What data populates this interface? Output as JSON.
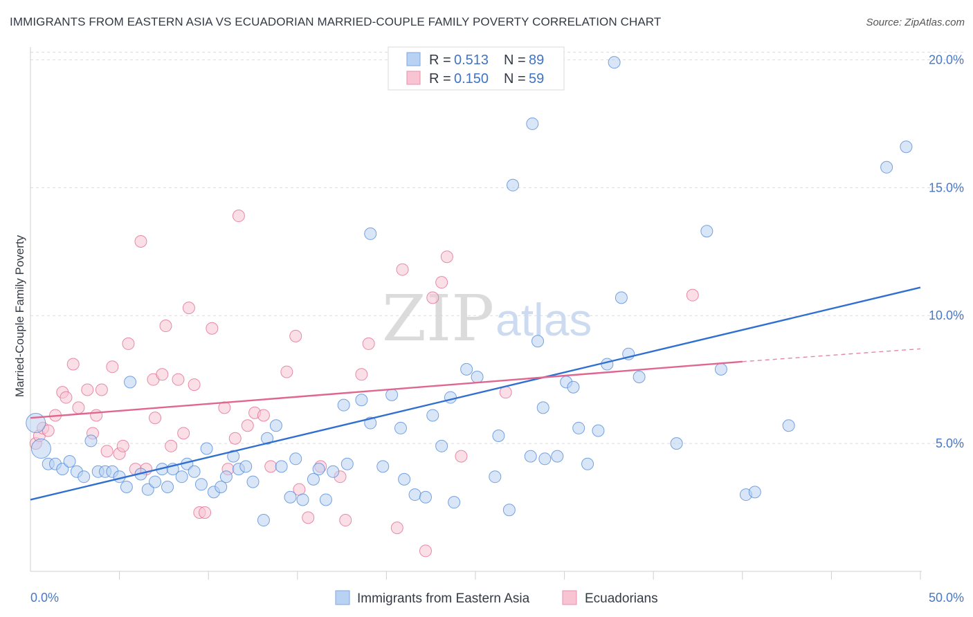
{
  "title": "IMMIGRANTS FROM EASTERN ASIA VS ECUADORIAN MARRIED-COUPLE FAMILY POVERTY CORRELATION CHART",
  "source": "Source: ZipAtlas.com",
  "watermark": {
    "zip": "ZIP",
    "atlas": "atlas"
  },
  "colors": {
    "blue": "#4a86d8",
    "blue_fill": "#b9d2f3",
    "pink": "#e0668f",
    "pink_fill": "#f8c4d3"
  },
  "legend": {
    "rows": [
      {
        "r_label": "R =",
        "r_value": "0.513",
        "n_label": "N =",
        "n_value": "89"
      },
      {
        "r_label": "R =",
        "r_value": "0.150",
        "n_label": "N =",
        "n_value": "59"
      }
    ]
  },
  "chart_data": {
    "type": "scatter",
    "title": "IMMIGRANTS FROM EASTERN ASIA VS ECUADORIAN MARRIED-COUPLE FAMILY POVERTY CORRELATION CHART",
    "xlabel": "",
    "ylabel": "Married-Couple Family Poverty",
    "xlim": [
      0,
      50
    ],
    "ylim": [
      0,
      20.5
    ],
    "x_tick_labels": [
      "0.0%",
      "50.0%"
    ],
    "y_ticks": [
      5,
      10,
      15,
      20
    ],
    "y_tick_labels": [
      "5.0%",
      "10.0%",
      "15.0%",
      "20.0%"
    ],
    "series": [
      {
        "name": "Immigrants from Eastern Asia",
        "color": "blue",
        "trend": {
          "x0": 0,
          "y0": 2.8,
          "x1": 50,
          "y1": 11.1
        },
        "points": [
          [
            0.3,
            5.8
          ],
          [
            0.6,
            4.8
          ],
          [
            1.0,
            4.2
          ],
          [
            1.4,
            4.2
          ],
          [
            1.8,
            4.0
          ],
          [
            2.2,
            4.3
          ],
          [
            2.6,
            3.9
          ],
          [
            3.0,
            3.7
          ],
          [
            3.4,
            5.1
          ],
          [
            3.8,
            3.9
          ],
          [
            4.2,
            3.9
          ],
          [
            4.6,
            3.9
          ],
          [
            5.0,
            3.7
          ],
          [
            5.4,
            3.3
          ],
          [
            5.6,
            7.4
          ],
          [
            6.2,
            3.8
          ],
          [
            6.6,
            3.2
          ],
          [
            7.0,
            3.5
          ],
          [
            7.4,
            4.0
          ],
          [
            7.7,
            3.3
          ],
          [
            8.0,
            4.0
          ],
          [
            8.5,
            3.7
          ],
          [
            8.8,
            4.2
          ],
          [
            9.2,
            3.9
          ],
          [
            9.6,
            3.4
          ],
          [
            9.9,
            4.8
          ],
          [
            10.3,
            3.1
          ],
          [
            10.7,
            3.3
          ],
          [
            11.0,
            3.7
          ],
          [
            11.4,
            4.5
          ],
          [
            11.7,
            4.0
          ],
          [
            12.1,
            4.1
          ],
          [
            12.5,
            3.5
          ],
          [
            13.1,
            2.0
          ],
          [
            13.3,
            5.2
          ],
          [
            13.8,
            5.7
          ],
          [
            14.1,
            4.1
          ],
          [
            14.6,
            2.9
          ],
          [
            14.9,
            4.4
          ],
          [
            15.3,
            2.8
          ],
          [
            15.9,
            3.6
          ],
          [
            16.2,
            4.0
          ],
          [
            16.6,
            2.8
          ],
          [
            17.0,
            3.9
          ],
          [
            17.6,
            6.5
          ],
          [
            17.8,
            4.2
          ],
          [
            18.6,
            6.7
          ],
          [
            19.1,
            5.8
          ],
          [
            19.1,
            13.2
          ],
          [
            19.8,
            4.1
          ],
          [
            20.3,
            6.9
          ],
          [
            20.8,
            5.6
          ],
          [
            21.0,
            3.6
          ],
          [
            21.6,
            3.0
          ],
          [
            22.2,
            2.9
          ],
          [
            22.6,
            6.1
          ],
          [
            23.1,
            4.9
          ],
          [
            23.6,
            6.8
          ],
          [
            23.8,
            2.7
          ],
          [
            24.5,
            7.9
          ],
          [
            25.1,
            7.6
          ],
          [
            26.1,
            3.7
          ],
          [
            26.3,
            5.3
          ],
          [
            26.9,
            2.4
          ],
          [
            27.1,
            15.1
          ],
          [
            28.1,
            4.5
          ],
          [
            28.2,
            17.5
          ],
          [
            28.5,
            9.0
          ],
          [
            28.8,
            6.4
          ],
          [
            28.9,
            4.4
          ],
          [
            29.6,
            4.5
          ],
          [
            30.1,
            7.4
          ],
          [
            30.5,
            7.2
          ],
          [
            30.8,
            5.6
          ],
          [
            31.3,
            4.2
          ],
          [
            31.9,
            5.5
          ],
          [
            32.4,
            8.1
          ],
          [
            32.8,
            19.9
          ],
          [
            33.2,
            10.7
          ],
          [
            33.6,
            8.5
          ],
          [
            34.2,
            7.6
          ],
          [
            36.3,
            5.0
          ],
          [
            38.0,
            13.3
          ],
          [
            38.8,
            7.9
          ],
          [
            40.2,
            3.0
          ],
          [
            40.7,
            3.1
          ],
          [
            42.6,
            5.7
          ],
          [
            48.1,
            15.8
          ],
          [
            49.2,
            16.6
          ]
        ]
      },
      {
        "name": "Ecuadorians",
        "color": "pink",
        "trend": {
          "x0": 0,
          "y0": 6.0,
          "x1": 40,
          "y1": 8.2,
          "dash_x1": 50,
          "dash_y1": 8.7
        },
        "points": [
          [
            0.3,
            5.0
          ],
          [
            0.5,
            5.3
          ],
          [
            0.7,
            5.6
          ],
          [
            1.0,
            5.5
          ],
          [
            1.4,
            6.1
          ],
          [
            1.8,
            7.0
          ],
          [
            2.0,
            6.8
          ],
          [
            2.4,
            8.1
          ],
          [
            2.7,
            6.4
          ],
          [
            3.2,
            7.1
          ],
          [
            3.5,
            5.4
          ],
          [
            3.7,
            6.1
          ],
          [
            4.0,
            7.1
          ],
          [
            4.3,
            4.7
          ],
          [
            4.6,
            8.0
          ],
          [
            5.0,
            4.6
          ],
          [
            5.2,
            4.9
          ],
          [
            5.5,
            8.9
          ],
          [
            5.9,
            4.0
          ],
          [
            6.2,
            12.9
          ],
          [
            6.5,
            4.0
          ],
          [
            6.9,
            7.5
          ],
          [
            7.0,
            6.0
          ],
          [
            7.4,
            7.7
          ],
          [
            7.6,
            9.6
          ],
          [
            7.9,
            4.9
          ],
          [
            8.3,
            7.5
          ],
          [
            8.6,
            5.4
          ],
          [
            8.9,
            10.3
          ],
          [
            9.2,
            7.3
          ],
          [
            9.5,
            2.3
          ],
          [
            9.8,
            2.3
          ],
          [
            10.2,
            9.5
          ],
          [
            10.9,
            6.4
          ],
          [
            11.1,
            4.0
          ],
          [
            11.5,
            5.2
          ],
          [
            11.7,
            13.9
          ],
          [
            12.2,
            5.7
          ],
          [
            12.6,
            6.2
          ],
          [
            13.1,
            6.1
          ],
          [
            13.5,
            4.1
          ],
          [
            14.4,
            7.8
          ],
          [
            14.9,
            9.2
          ],
          [
            15.1,
            3.2
          ],
          [
            15.6,
            2.1
          ],
          [
            16.3,
            4.1
          ],
          [
            17.4,
            3.7
          ],
          [
            17.7,
            2.0
          ],
          [
            18.6,
            7.7
          ],
          [
            19.0,
            8.9
          ],
          [
            20.6,
            1.7
          ],
          [
            20.9,
            11.8
          ],
          [
            22.2,
            0.8
          ],
          [
            22.6,
            10.7
          ],
          [
            23.1,
            11.3
          ],
          [
            23.4,
            12.3
          ],
          [
            24.2,
            4.5
          ],
          [
            26.7,
            7.0
          ],
          [
            37.2,
            10.8
          ]
        ]
      }
    ]
  },
  "bottom_legend": {
    "items": [
      {
        "label": "Immigrants from Eastern Asia"
      },
      {
        "label": "Ecuadorians"
      }
    ]
  }
}
